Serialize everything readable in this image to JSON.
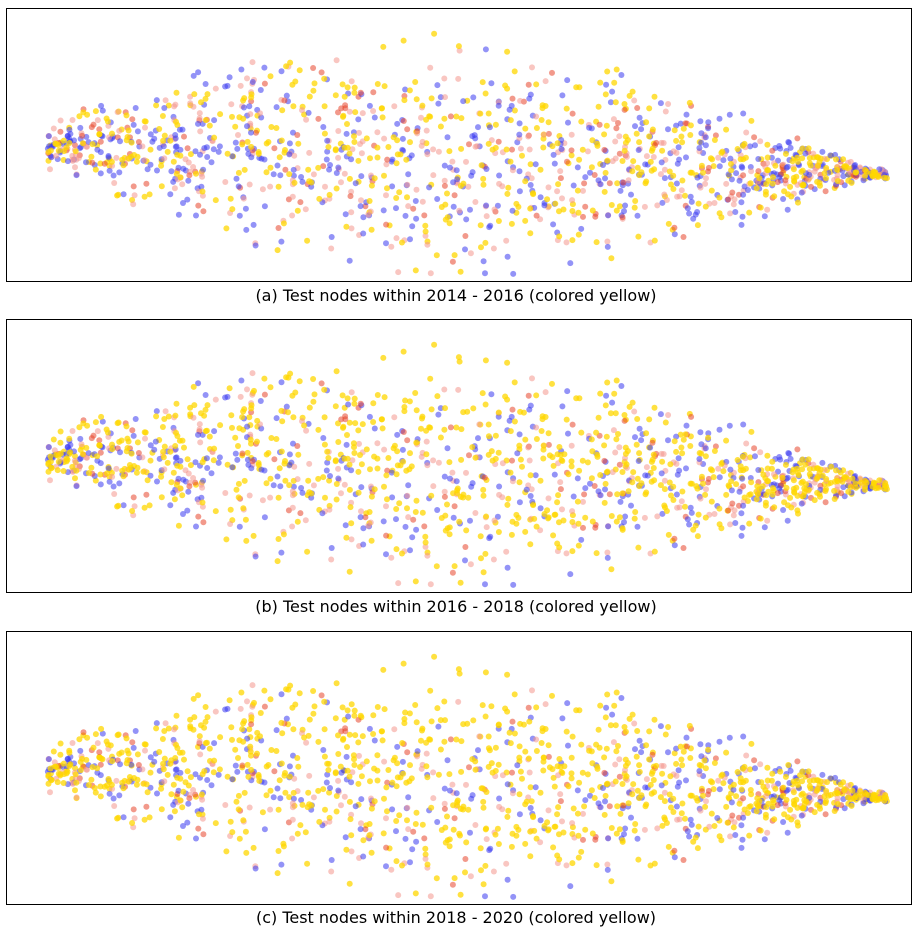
{
  "colors": {
    "highlight": "#ffd700",
    "blue": "#3a3af0",
    "salmon": "#f4978e",
    "red": "#e8452c",
    "background": "#ffffff",
    "frame": "#000000"
  },
  "chart_data": [
    {
      "type": "scatter",
      "caption": "(a) Test nodes within 2014 - 2016 (colored yellow)",
      "highlight_fraction": 0.35,
      "axes_visible": false,
      "grid": false
    },
    {
      "type": "scatter",
      "caption": "(b) Test nodes within 2016 - 2018 (colored yellow)",
      "highlight_fraction": 0.5,
      "axes_visible": false,
      "grid": false
    },
    {
      "type": "scatter",
      "caption": "(c) Test nodes within 2018 - 2020 (colored yellow)",
      "highlight_fraction": 0.55,
      "axes_visible": false,
      "grid": false
    }
  ]
}
